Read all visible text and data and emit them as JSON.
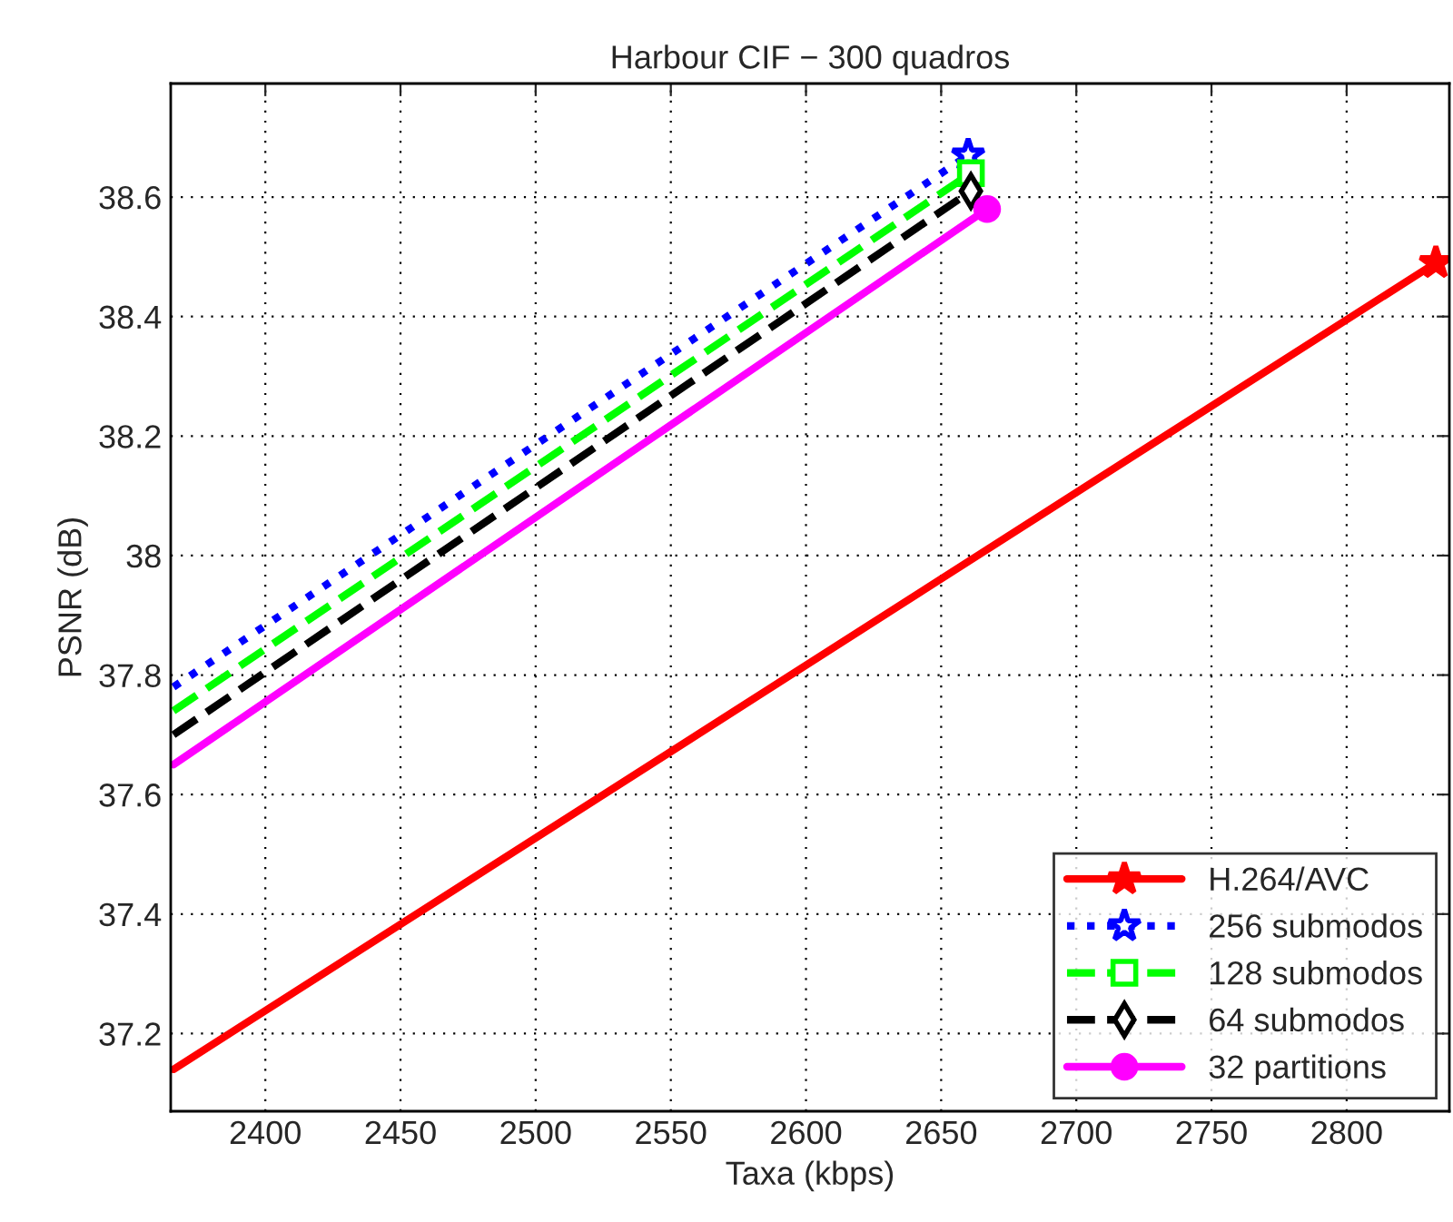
{
  "chart_data": {
    "type": "line",
    "title": "Harbour CIF − 300 quadros",
    "xlabel": "Taxa (kbps)",
    "ylabel": "PSNR (dB)",
    "xlim": [
      2365,
      2838
    ],
    "ylim": [
      37.07,
      38.79
    ],
    "xticks": [
      2400,
      2450,
      2500,
      2550,
      2600,
      2650,
      2700,
      2750,
      2800
    ],
    "yticks": [
      37.2,
      37.4,
      37.6,
      37.8,
      38,
      38.2,
      38.4,
      38.6
    ],
    "grid": true,
    "legend": "bottom right",
    "series": [
      {
        "name": "H.264/AVC",
        "color": "#ff0000",
        "marker": "star",
        "line_style": "solid",
        "x": [
          2366,
          2833
        ],
        "values": [
          37.14,
          38.49
        ]
      },
      {
        "name": "256 submodos",
        "color": "#0000ff",
        "marker": "star",
        "line_style": "dotted",
        "x": [
          2366,
          2660
        ],
        "values": [
          37.78,
          38.67
        ]
      },
      {
        "name": "128 submodos",
        "color": "#00ff00",
        "marker": "square",
        "line_style": "dashed",
        "x": [
          2366,
          2661
        ],
        "values": [
          37.74,
          38.64
        ]
      },
      {
        "name": "64 submodos",
        "color": "#000000",
        "marker": "diamond",
        "line_style": "dashed",
        "x": [
          2366,
          2661
        ],
        "values": [
          37.7,
          38.61
        ]
      },
      {
        "name": "32 partitions",
        "color": "#ff00ff",
        "marker": "circle",
        "line_style": "solid",
        "x": [
          2366,
          2667
        ],
        "values": [
          37.65,
          38.58
        ]
      }
    ]
  }
}
